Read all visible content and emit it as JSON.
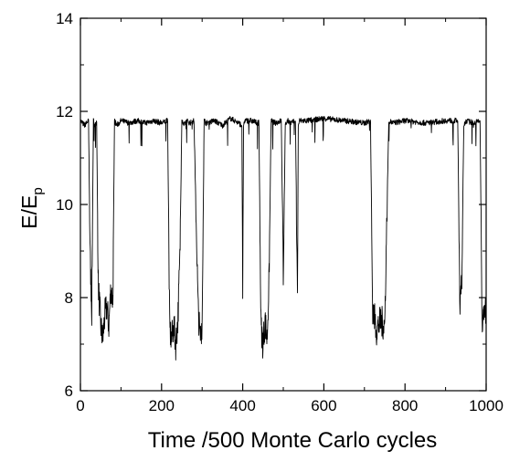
{
  "chart_data": {
    "type": "line",
    "title": "",
    "xlabel": "Time /500 Monte Carlo cycles",
    "ylabel": {
      "main": "E/E",
      "subscript": "p"
    },
    "xlim": [
      0,
      1000
    ],
    "ylim": [
      6,
      14
    ],
    "xticks": [
      {
        "value": 0,
        "label": "0"
      },
      {
        "value": 200,
        "label": "200"
      },
      {
        "value": 400,
        "label": "400"
      },
      {
        "value": 600,
        "label": "600"
      },
      {
        "value": 800,
        "label": "800"
      },
      {
        "value": 1000,
        "label": "1000"
      }
    ],
    "yticks": [
      {
        "value": 6,
        "label": "6"
      },
      {
        "value": 8,
        "label": "8"
      },
      {
        "value": 10,
        "label": "10"
      },
      {
        "value": 12,
        "label": "12"
      },
      {
        "value": 14,
        "label": "14"
      }
    ],
    "grid": false,
    "legend": "none",
    "line_color": "#000000",
    "series": [
      {
        "x": [
          0,
          10,
          20,
          24,
          28,
          32,
          36,
          40,
          44,
          50,
          55,
          60,
          65,
          70,
          75,
          80,
          84,
          90,
          100,
          120,
          140,
          160,
          180,
          200,
          215,
          220,
          225,
          230,
          235,
          240,
          245,
          250,
          255,
          262,
          270,
          280,
          290,
          295,
          300,
          305,
          310,
          330,
          350,
          370,
          390,
          398,
          400,
          402,
          405,
          420,
          440,
          445,
          450,
          455,
          460,
          465,
          470,
          480,
          495,
          500,
          505,
          510,
          520,
          530,
          535,
          537,
          540,
          560,
          600,
          650,
          700,
          715,
          720,
          730,
          740,
          750,
          760,
          770,
          800,
          850,
          900,
          930,
          935,
          940,
          945,
          950,
          970,
          985,
          990,
          995,
          1000
        ],
        "y": [
          11.8,
          11.7,
          11.8,
          8.9,
          7.7,
          11.8,
          11.7,
          11.8,
          8.3,
          7.4,
          7.1,
          7.6,
          7.8,
          7.4,
          8.2,
          7.9,
          11.8,
          11.7,
          11.8,
          11.75,
          11.8,
          11.75,
          11.8,
          11.75,
          11.8,
          7.3,
          7.1,
          7.4,
          7.0,
          7.5,
          8.8,
          11.8,
          11.7,
          11.8,
          11.75,
          11.8,
          7.8,
          7.1,
          7.5,
          11.8,
          11.75,
          11.8,
          11.7,
          11.85,
          11.75,
          11.7,
          7.9,
          11.7,
          11.8,
          11.8,
          11.75,
          7.4,
          7.0,
          7.5,
          7.1,
          8.4,
          11.8,
          11.75,
          11.8,
          8.6,
          11.7,
          11.8,
          11.75,
          11.8,
          7.9,
          11.7,
          11.8,
          11.8,
          11.85,
          11.8,
          11.75,
          11.8,
          7.8,
          7.3,
          7.5,
          7.4,
          11.8,
          11.75,
          11.8,
          11.75,
          11.8,
          11.8,
          7.9,
          8.5,
          11.7,
          11.8,
          11.75,
          11.8,
          7.3,
          7.9,
          7.5
        ]
      }
    ]
  }
}
